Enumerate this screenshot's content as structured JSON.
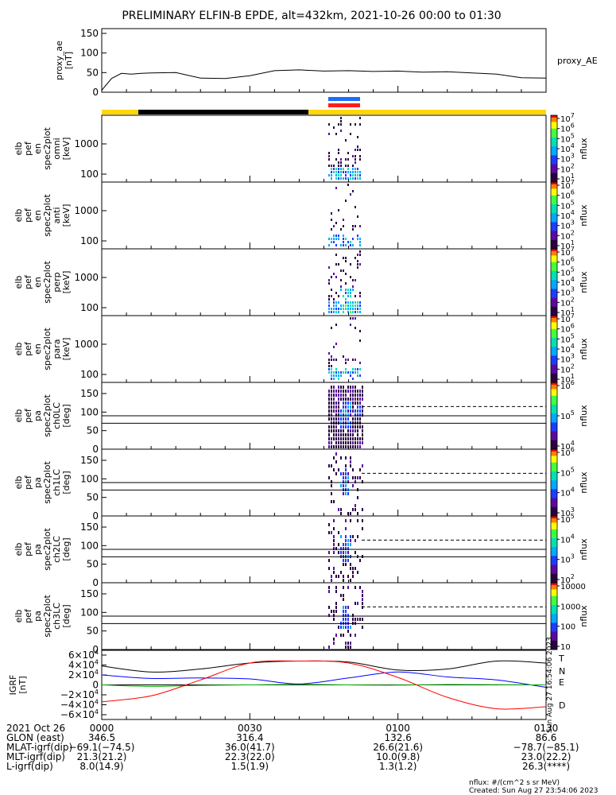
{
  "title": "PRELIMINARY ELFIN-B EPDE, alt=432km, 2021-10-26 00:00 to 01:30",
  "chart_data": [
    {
      "type": "line",
      "id": "proxy_ae",
      "ylabel_lines": [
        "proxy_ae",
        "[nT]"
      ],
      "series_label": "proxy_AE",
      "ylim": [
        0,
        150
      ],
      "yticks": [
        "0",
        "50",
        "100",
        "150"
      ],
      "x_minutes": [
        0,
        2,
        4,
        6,
        8,
        10,
        15,
        20,
        25,
        30,
        35,
        40,
        45,
        50,
        55,
        60,
        65,
        70,
        75,
        80,
        85,
        90
      ],
      "values": [
        5,
        35,
        48,
        46,
        48,
        49,
        50,
        36,
        35,
        42,
        55,
        57,
        54,
        55,
        53,
        54,
        51,
        52,
        49,
        46,
        37,
        36
      ]
    },
    {
      "type": "heatmap",
      "id": "en_omni",
      "ylabel_lines": [
        "elb",
        "pef",
        "en",
        "spec2plot",
        "omni",
        "[keV]"
      ],
      "yticks": [
        "1000",
        "100"
      ],
      "colorbar_ticks": [
        "10^7",
        "10^6",
        "10^5",
        "10^4",
        "10^3",
        "10^2",
        "10^1"
      ],
      "colorbar_label": "nflux"
    },
    {
      "type": "heatmap",
      "id": "en_anti",
      "ylabel_lines": [
        "elb",
        "pef",
        "en",
        "spec2plot",
        "anti",
        "[keV]"
      ],
      "yticks": [
        "1000",
        "100"
      ],
      "colorbar_ticks": [
        "10^7",
        "10^6",
        "10^5",
        "10^4",
        "10^3",
        "10^2",
        "10^1"
      ],
      "colorbar_label": "nflux"
    },
    {
      "type": "heatmap",
      "id": "en_perp",
      "ylabel_lines": [
        "elb",
        "pef",
        "en",
        "spec2plot",
        "perp",
        "[keV]"
      ],
      "yticks": [
        "1000",
        "100"
      ],
      "colorbar_ticks": [
        "10^7",
        "10^6",
        "10^5",
        "10^4",
        "10^3",
        "10^2",
        "10^1"
      ],
      "colorbar_label": "nflux"
    },
    {
      "type": "heatmap",
      "id": "en_para",
      "ylabel_lines": [
        "elb",
        "pef",
        "en",
        "spec2plot",
        "para",
        "[keV]"
      ],
      "yticks": [
        "1000",
        "100"
      ],
      "colorbar_ticks": [
        "10^7",
        "10^6",
        "10^5",
        "10^4",
        "10^3",
        "10^2",
        "10^1"
      ],
      "colorbar_label": "nflux"
    },
    {
      "type": "heatmap",
      "id": "pa_ch0",
      "ylabel_lines": [
        "elb",
        "pef",
        "pa",
        "spec2plot",
        "ch0LC",
        "[deg]"
      ],
      "yticks": [
        "150",
        "100",
        "50",
        "0"
      ],
      "colorbar_ticks": [
        "10^6",
        "10^5",
        "10^4"
      ],
      "colorbar_label": "nflux"
    },
    {
      "type": "heatmap",
      "id": "pa_ch1",
      "ylabel_lines": [
        "elb",
        "pef",
        "pa",
        "spec2plot",
        "ch1LC",
        "[deg]"
      ],
      "yticks": [
        "150",
        "100",
        "50",
        "0"
      ],
      "colorbar_ticks": [
        "10^6",
        "10^5",
        "10^4",
        "10^3"
      ],
      "colorbar_label": "nflux"
    },
    {
      "type": "heatmap",
      "id": "pa_ch2",
      "ylabel_lines": [
        "elb",
        "pef",
        "pa",
        "spec2plot",
        "ch2LC",
        "[deg]"
      ],
      "yticks": [
        "150",
        "100",
        "50",
        "0"
      ],
      "colorbar_ticks": [
        "10^5",
        "10^4",
        "10^3",
        "10^2"
      ],
      "colorbar_label": "nflux"
    },
    {
      "type": "heatmap",
      "id": "pa_ch3",
      "ylabel_lines": [
        "elb",
        "pef",
        "pa",
        "spec2plot",
        "ch3LC",
        "[deg]"
      ],
      "yticks": [
        "150",
        "100",
        "50",
        "0"
      ],
      "colorbar_ticks": [
        "10000",
        "1000",
        "100",
        "10"
      ],
      "colorbar_label": "nflux"
    },
    {
      "type": "line",
      "id": "igrf",
      "ylabel_lines": [
        "IGRF",
        "[nT]"
      ],
      "yticks": [
        "6×10^4",
        "4×10^4",
        "2×10^4",
        "0",
        "−2×10^4",
        "−4×10^4",
        "−6×10^4"
      ],
      "ylim": [
        -60000,
        60000
      ],
      "x_minutes": [
        0,
        10,
        20,
        30,
        40,
        50,
        60,
        70,
        80,
        90
      ],
      "series": [
        {
          "name": "T",
          "color": "#000000",
          "values": [
            38000,
            26000,
            32000,
            44000,
            48000,
            46000,
            30000,
            32000,
            48000,
            44000
          ]
        },
        {
          "name": "N",
          "color": "#0000ff",
          "values": [
            20000,
            13000,
            14000,
            12000,
            2000,
            14000,
            26000,
            16000,
            10000,
            -5000
          ]
        },
        {
          "name": "E",
          "color": "#00b000",
          "values": [
            0,
            -3000,
            -1000,
            0,
            1000,
            0,
            -500,
            800,
            400,
            0
          ]
        },
        {
          "name": "D",
          "color": "#ff0000",
          "values": [
            -34000,
            -22000,
            10000,
            44000,
            48000,
            44000,
            15000,
            -25000,
            -48000,
            -44000
          ]
        }
      ]
    }
  ],
  "time_axis": {
    "date_label": "2021 Oct 26",
    "tick_labels": [
      "0000",
      "0030",
      "0100",
      "0130"
    ]
  },
  "ephemeris": {
    "row_labels": [
      "GLON (east)",
      "MLAT-igrf(dip)",
      "MLT-igrf(dip)",
      "L-igrf(dip)"
    ],
    "columns": [
      [
        "346.5",
        "−69.1(−74.5)",
        "21.3(21.2)",
        "8.0(14.9)"
      ],
      [
        "316.4",
        "36.0(41.7)",
        "22.3(22.0)",
        "1.5(1.9)"
      ],
      [
        "132.6",
        "26.6(21.6)",
        "10.0(9.8)",
        "1.3(1.2)"
      ],
      [
        "86.6",
        "−78.7(−85.1)",
        "23.0(22.2)",
        "26.3(****)"
      ]
    ]
  },
  "footer": {
    "units": "nflux: #/(cm^2 s sr MeV)",
    "created": "Created: Sun Aug 27 23:54:06 2023",
    "side_stamp": "Sun Aug 27 16:54:06 2023"
  }
}
